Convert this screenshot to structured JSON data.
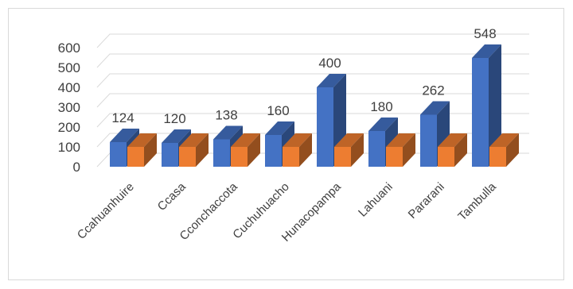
{
  "chart_data": {
    "type": "bar",
    "categories": [
      "Ccahuanhuire",
      "Ccasa",
      "Cconchaccota",
      "Cuchuhuacho",
      "Hunacopampa",
      "Lahuani",
      "Pararani",
      "Tambulla"
    ],
    "series": [
      {
        "values": [
          124,
          120,
          138,
          160,
          400,
          180,
          262,
          548
        ],
        "color": "#4472c4",
        "data_labels": true
      },
      {
        "values": [
          100,
          100,
          100,
          100,
          100,
          100,
          100,
          100
        ],
        "color": "#ed7d31",
        "data_labels": false
      }
    ],
    "yticks": [
      0,
      100,
      200,
      300,
      400,
      500,
      600
    ],
    "ylim": [
      0,
      600
    ],
    "grid": true,
    "style": "3d-clustered-column",
    "legend": "none"
  }
}
